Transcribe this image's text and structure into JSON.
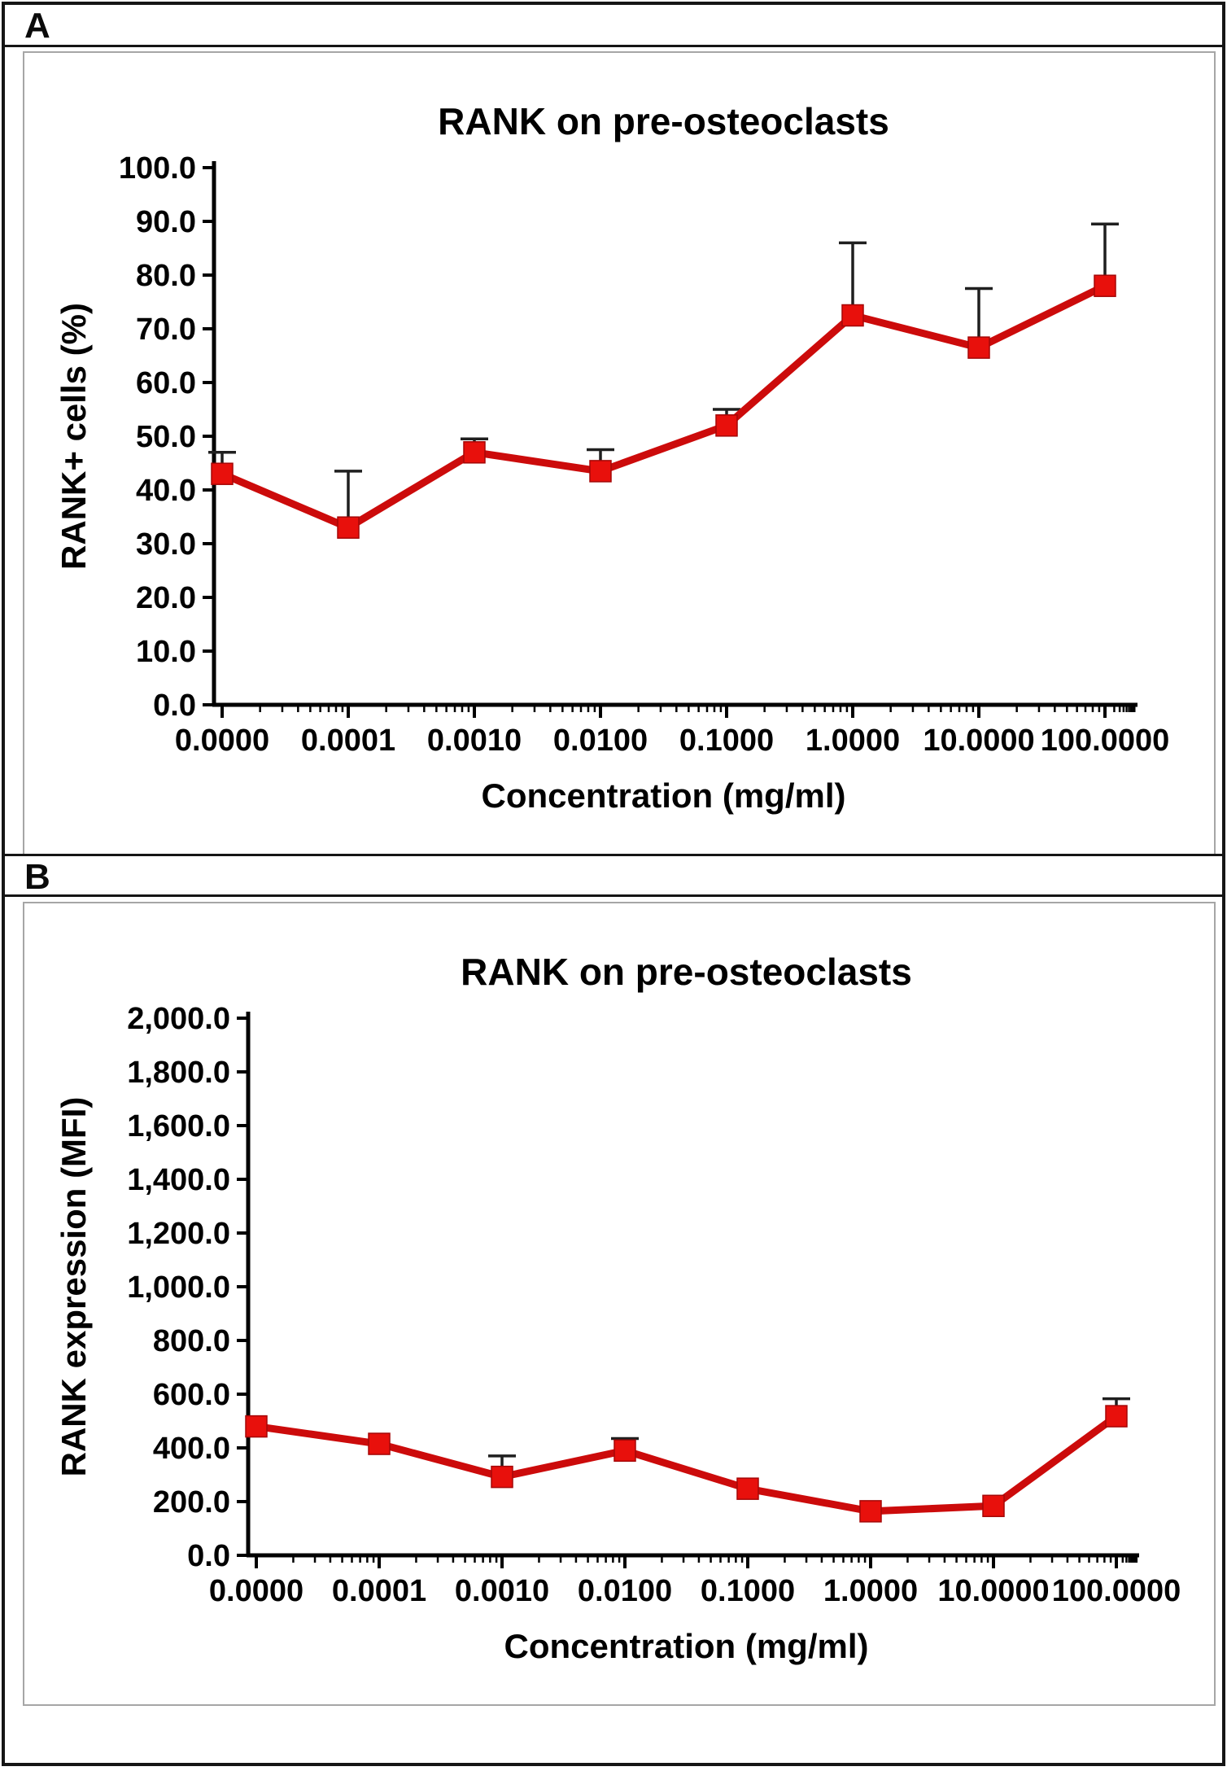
{
  "panels": [
    {
      "label": "A"
    },
    {
      "label": "B"
    }
  ],
  "colors": {
    "series_line": "#cc0b0b",
    "marker_fill": "#e8100c",
    "marker_stroke": "#a50707",
    "error_bar": "#1f1f1f",
    "axis": "#000000",
    "text": "#000000",
    "chart_box_border": "#a6a6a6",
    "frame_border": "#151515"
  },
  "chart_data": [
    {
      "panel": "A",
      "type": "line",
      "title": "RANK on pre-osteoclasts",
      "xlabel": "Concentration (mg/ml)",
      "ylabel": "RANK+ cells (%)",
      "x_scale": "log",
      "grid": false,
      "legend": null,
      "marker": "square",
      "categories": [
        "0.0000",
        "0.0001",
        "0.0010",
        "0.0100",
        "0.1000",
        "1.0000",
        "10.0000",
        "100.0000"
      ],
      "values": [
        43.0,
        33.0,
        47.0,
        43.5,
        52.0,
        72.5,
        66.5,
        78.0
      ],
      "errors_upper": [
        4.0,
        10.5,
        2.5,
        4.0,
        3.0,
        13.5,
        11.0,
        11.5
      ],
      "ylim": [
        0,
        100
      ],
      "ytick_step": 10
    },
    {
      "panel": "B",
      "type": "line",
      "title": "RANK on pre-osteoclasts",
      "xlabel": "Concentration (mg/ml)",
      "ylabel": "RANK expression (MFI)",
      "x_scale": "log",
      "grid": false,
      "legend": null,
      "marker": "square",
      "categories": [
        "0.0000",
        "0.0001",
        "0.0010",
        "0.0100",
        "0.1000",
        "1.0000",
        "10.0000",
        "100.0000"
      ],
      "values": [
        480,
        415,
        292,
        390,
        248,
        164,
        184,
        518
      ],
      "errors_upper": [
        0,
        0,
        78,
        45,
        0,
        0,
        0,
        65
      ],
      "ylim": [
        0,
        2000
      ],
      "ytick_step": 200
    }
  ]
}
